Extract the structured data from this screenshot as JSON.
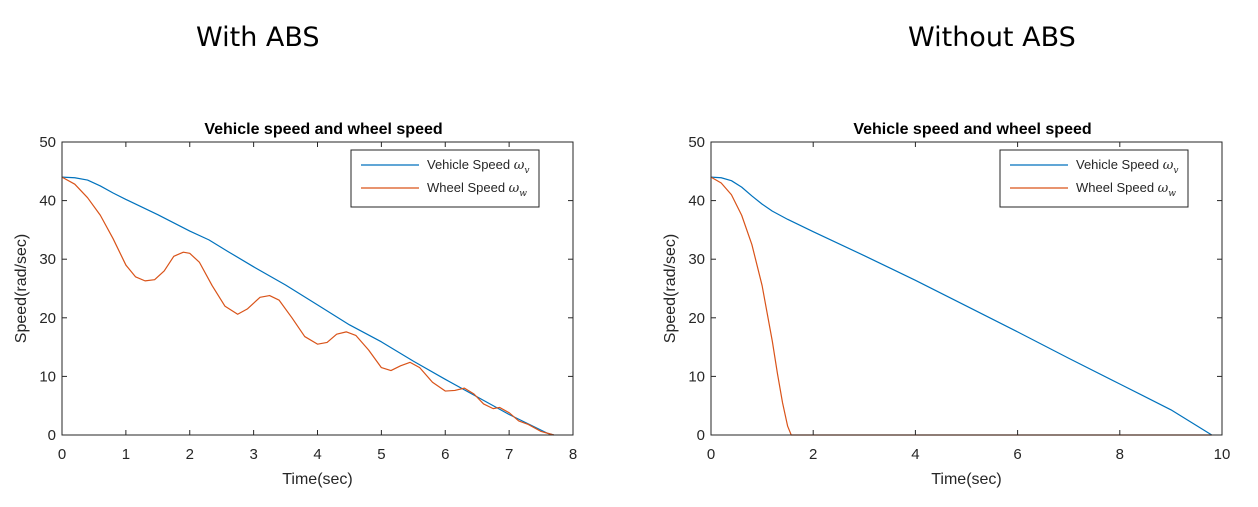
{
  "headings": {
    "left": "With ABS",
    "right": "Without ABS"
  },
  "colors": {
    "vehicle": "#0072BD",
    "wheel": "#D95319",
    "axis": "#262626"
  },
  "chart_data": [
    {
      "type": "line",
      "title": "Vehicle speed and wheel speed",
      "xlabel": "Time(sec)",
      "ylabel": "Speed(rad/sec)",
      "xlim": [
        0,
        8
      ],
      "ylim": [
        0,
        50
      ],
      "xticks": [
        0,
        1,
        2,
        3,
        4,
        5,
        6,
        7,
        8
      ],
      "yticks": [
        0,
        10,
        20,
        30,
        40,
        50
      ],
      "legend": {
        "position": "top-right"
      },
      "series": [
        {
          "name": "Vehicle Speed",
          "symbol": "ω",
          "subscript": "v",
          "color": "#0072BD",
          "x": [
            0,
            0.2,
            0.4,
            0.6,
            0.8,
            1.0,
            1.5,
            2.0,
            2.3,
            2.6,
            3.0,
            3.5,
            4.0,
            4.5,
            5.0,
            5.5,
            6.0,
            6.5,
            7.0,
            7.3,
            7.6,
            7.7
          ],
          "y": [
            44,
            43.9,
            43.5,
            42.5,
            41.3,
            40.2,
            37.6,
            34.8,
            33.3,
            31.3,
            28.7,
            25.6,
            22.2,
            18.8,
            15.9,
            12.6,
            9.5,
            6.5,
            3.5,
            1.9,
            0.3,
            0
          ]
        },
        {
          "name": "Wheel Speed",
          "symbol": "ω",
          "subscript": "w",
          "color": "#D95319",
          "x": [
            0,
            0.2,
            0.4,
            0.6,
            0.8,
            1.0,
            1.15,
            1.3,
            1.45,
            1.6,
            1.75,
            1.9,
            2.0,
            2.15,
            2.35,
            2.55,
            2.75,
            2.9,
            3.1,
            3.25,
            3.4,
            3.6,
            3.8,
            4.0,
            4.15,
            4.3,
            4.45,
            4.6,
            4.8,
            5.0,
            5.15,
            5.3,
            5.45,
            5.6,
            5.8,
            6.0,
            6.15,
            6.3,
            6.45,
            6.6,
            6.75,
            6.85,
            7.0,
            7.15,
            7.3,
            7.5,
            7.7
          ],
          "y": [
            44,
            42.8,
            40.5,
            37.5,
            33.5,
            29.0,
            27.0,
            26.3,
            26.5,
            28.0,
            30.5,
            31.2,
            31.0,
            29.5,
            25.5,
            22.0,
            20.6,
            21.5,
            23.5,
            23.8,
            23.0,
            20.0,
            16.8,
            15.5,
            15.8,
            17.2,
            17.6,
            17.0,
            14.5,
            11.5,
            11.0,
            11.8,
            12.4,
            11.5,
            9.0,
            7.5,
            7.6,
            8.0,
            7.0,
            5.3,
            4.5,
            4.7,
            3.8,
            2.4,
            1.8,
            0.6,
            0
          ]
        }
      ]
    },
    {
      "type": "line",
      "title": "Vehicle speed and wheel speed",
      "xlabel": "Time(sec)",
      "ylabel": "Speed(rad/sec)",
      "xlim": [
        0,
        10
      ],
      "ylim": [
        0,
        50
      ],
      "xticks": [
        0,
        2,
        4,
        6,
        8,
        10
      ],
      "yticks": [
        0,
        10,
        20,
        30,
        40,
        50
      ],
      "legend": {
        "position": "top-right"
      },
      "series": [
        {
          "name": "Vehicle Speed",
          "symbol": "ω",
          "subscript": "v",
          "color": "#0072BD",
          "x": [
            0,
            0.2,
            0.4,
            0.6,
            0.8,
            1.0,
            1.2,
            1.5,
            2.0,
            3.0,
            4.0,
            5.0,
            6.0,
            7.0,
            8.0,
            9.0,
            9.8
          ],
          "y": [
            44,
            43.9,
            43.4,
            42.3,
            40.8,
            39.4,
            38.2,
            36.8,
            34.7,
            30.6,
            26.4,
            22.0,
            17.6,
            13.1,
            8.7,
            4.3,
            0
          ]
        },
        {
          "name": "Wheel Speed",
          "symbol": "ω",
          "subscript": "w",
          "color": "#D95319",
          "x": [
            0,
            0.2,
            0.4,
            0.6,
            0.8,
            1.0,
            1.2,
            1.3,
            1.4,
            1.5,
            1.57,
            2.0,
            4.0,
            6.0,
            8.0,
            9.8
          ],
          "y": [
            44,
            43.0,
            41.0,
            37.5,
            32.5,
            25.5,
            16.0,
            10.5,
            5.5,
            1.5,
            0,
            0,
            0,
            0,
            0,
            0
          ]
        }
      ]
    }
  ]
}
